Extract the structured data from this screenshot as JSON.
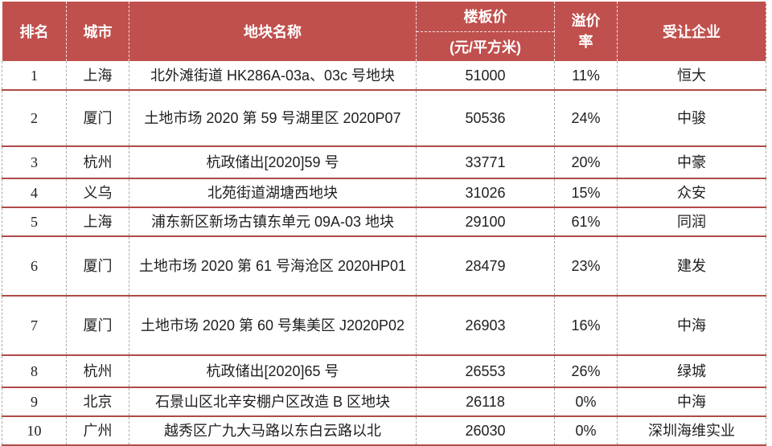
{
  "table": {
    "colors": {
      "header_bg": "#C0504D",
      "header_text": "#FFFFFF",
      "row_rule_red": "#B04A47",
      "dashed_gray": "#ABABAB",
      "body_text": "#1F1F1F"
    },
    "headers": {
      "rank": "排名",
      "city": "城市",
      "plot_name": "地块名称",
      "floor_price": "楼板价",
      "floor_price_unit": "(元/平方米)",
      "premium_rate_line1": "溢价",
      "premium_rate_line2": "率",
      "buyer": "受让企业"
    },
    "rows": [
      {
        "rank": "1",
        "city": "上海",
        "plot_name": "北外滩街道 HK286A-03a、03c 号地块",
        "floor_price": "51000",
        "premium_rate": "11%",
        "buyer": "恒大"
      },
      {
        "rank": "2",
        "city": "厦门",
        "plot_name": "土地市场 2020 第 59 号湖里区 2020P07",
        "floor_price": "50536",
        "premium_rate": "24%",
        "buyer": "中骏"
      },
      {
        "rank": "3",
        "city": "杭州",
        "plot_name": "杭政储出[2020]59 号",
        "floor_price": "33771",
        "premium_rate": "20%",
        "buyer": "中豪"
      },
      {
        "rank": "4",
        "city": "义乌",
        "plot_name": "北苑街道湖塘西地块",
        "floor_price": "31026",
        "premium_rate": "15%",
        "buyer": "众安"
      },
      {
        "rank": "5",
        "city": "上海",
        "plot_name": "浦东新区新场古镇东单元 09A-03 地块",
        "floor_price": "29100",
        "premium_rate": "61%",
        "buyer": "同润"
      },
      {
        "rank": "6",
        "city": "厦门",
        "plot_name": "土地市场 2020 第 61 号海沧区 2020HP01",
        "floor_price": "28479",
        "premium_rate": "23%",
        "buyer": "建发"
      },
      {
        "rank": "7",
        "city": "厦门",
        "plot_name": "土地市场 2020 第 60 号集美区 J2020P02",
        "floor_price": "26903",
        "premium_rate": "16%",
        "buyer": "中海"
      },
      {
        "rank": "8",
        "city": "杭州",
        "plot_name": "杭政储出[2020]65 号",
        "floor_price": "26553",
        "premium_rate": "26%",
        "buyer": "绿城"
      },
      {
        "rank": "9",
        "city": "北京",
        "plot_name": "石景山区北辛安棚户区改造 B 区地块",
        "floor_price": "26118",
        "premium_rate": "0%",
        "buyer": "中海"
      },
      {
        "rank": "10",
        "city": "广州",
        "plot_name": "越秀区广九大马路以东白云路以北",
        "floor_price": "26030",
        "premium_rate": "0%",
        "buyer": "深圳海维实业"
      }
    ]
  }
}
